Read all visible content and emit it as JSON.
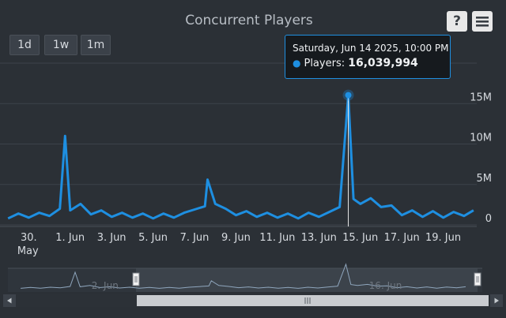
{
  "title": "Concurrent Players",
  "range_buttons": [
    "1d",
    "1w",
    "1m"
  ],
  "toolbar": {
    "help_label": "?",
    "help_icon": "help-icon",
    "menu_icon": "hamburger-menu-icon"
  },
  "tooltip": {
    "date": "Saturday, Jun 14 2025, 10:00 PM",
    "series_label": "Players:",
    "value": "16,039,994",
    "dot_color": "#1e8fe1"
  },
  "colors": {
    "background": "#2b3036",
    "series": "#1e8fe1",
    "text": "#d7dbe0"
  },
  "chart_data": {
    "type": "line",
    "title": "Concurrent Players",
    "x_label_ticks": [
      "30. May",
      "1. Jun",
      "3. Jun",
      "5. Jun",
      "7. Jun",
      "9. Jun",
      "11. Jun",
      "13. Jun",
      "15. Jun",
      "17. Jun",
      "19. Jun"
    ],
    "y_ticks": [
      "0",
      "5M",
      "10M",
      "15M"
    ],
    "ylim": [
      0,
      20000000
    ],
    "xlim": [
      "2025-05-29T10:00",
      "2025-06-21T00:00"
    ],
    "grid": true,
    "series": [
      {
        "name": "Players",
        "color": "#1e8fe1",
        "points": [
          [
            "2025-05-29T12:00",
            800000
          ],
          [
            "2025-05-30T00:00",
            1400000
          ],
          [
            "2025-05-30T12:00",
            900000
          ],
          [
            "2025-05-31T00:00",
            1500000
          ],
          [
            "2025-05-31T12:00",
            1100000
          ],
          [
            "2025-06-01T00:00",
            2000000
          ],
          [
            "2025-06-01T06:00",
            11000000
          ],
          [
            "2025-06-01T12:00",
            1800000
          ],
          [
            "2025-06-02T00:00",
            2600000
          ],
          [
            "2025-06-02T12:00",
            1300000
          ],
          [
            "2025-06-03T00:00",
            1800000
          ],
          [
            "2025-06-03T12:00",
            1000000
          ],
          [
            "2025-06-04T00:00",
            1500000
          ],
          [
            "2025-06-04T12:00",
            900000
          ],
          [
            "2025-06-05T00:00",
            1400000
          ],
          [
            "2025-06-05T12:00",
            800000
          ],
          [
            "2025-06-06T00:00",
            1400000
          ],
          [
            "2025-06-06T12:00",
            900000
          ],
          [
            "2025-06-07T00:00",
            1500000
          ],
          [
            "2025-06-07T12:00",
            1900000
          ],
          [
            "2025-06-08T00:00",
            2300000
          ],
          [
            "2025-06-08T03:00",
            5600000
          ],
          [
            "2025-06-08T12:00",
            2600000
          ],
          [
            "2025-06-09T00:00",
            2000000
          ],
          [
            "2025-06-09T12:00",
            1200000
          ],
          [
            "2025-06-10T00:00",
            1700000
          ],
          [
            "2025-06-10T12:00",
            1000000
          ],
          [
            "2025-06-11T00:00",
            1500000
          ],
          [
            "2025-06-11T12:00",
            900000
          ],
          [
            "2025-06-12T00:00",
            1400000
          ],
          [
            "2025-06-12T12:00",
            800000
          ],
          [
            "2025-06-13T00:00",
            1500000
          ],
          [
            "2025-06-13T12:00",
            1000000
          ],
          [
            "2025-06-14T00:00",
            1600000
          ],
          [
            "2025-06-14T12:00",
            2200000
          ],
          [
            "2025-06-14T22:00",
            16039994
          ],
          [
            "2025-06-15T04:00",
            3200000
          ],
          [
            "2025-06-15T12:00",
            2600000
          ],
          [
            "2025-06-16T00:00",
            3300000
          ],
          [
            "2025-06-16T12:00",
            2200000
          ],
          [
            "2025-06-17T00:00",
            2400000
          ],
          [
            "2025-06-17T12:00",
            1200000
          ],
          [
            "2025-06-18T00:00",
            1800000
          ],
          [
            "2025-06-18T12:00",
            1000000
          ],
          [
            "2025-06-19T00:00",
            1700000
          ],
          [
            "2025-06-19T12:00",
            900000
          ],
          [
            "2025-06-20T00:00",
            1600000
          ],
          [
            "2025-06-20T12:00",
            1100000
          ],
          [
            "2025-06-20T23:00",
            1800000
          ]
        ]
      }
    ],
    "navigator_labels": [
      "2. Jun",
      "16. Jun"
    ]
  }
}
